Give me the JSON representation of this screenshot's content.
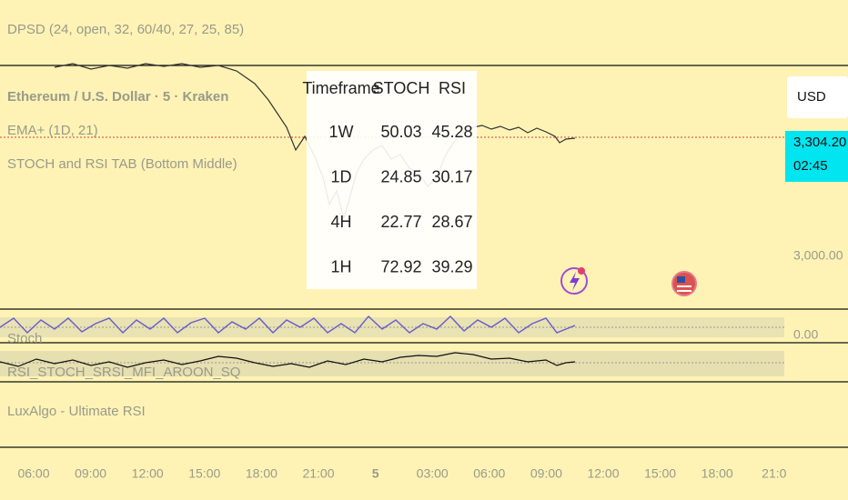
{
  "legend": {
    "indicator_top": "DPSD (24, open, 32, 60/40, 27, 25, 85)",
    "symbol": "Ethereum / U.S. Dollar · 5 · Kraken",
    "ema": "EMA+ (1D, 21)",
    "table_indicator": "STOCH and RSI TAB (Bottom Middle)"
  },
  "table": {
    "header": [
      "Timeframe",
      "STOCH",
      "RSI"
    ],
    "rows": [
      [
        "1W",
        "50.03",
        "45.28"
      ],
      [
        "1D",
        "24.85",
        "30.17"
      ],
      [
        "4H",
        "22.77",
        "28.67"
      ],
      [
        "1H",
        "72.92",
        "39.29"
      ]
    ]
  },
  "price_scale": {
    "currency": "USD",
    "last_price": "3,304.20",
    "countdown": "02:45",
    "level": "3,000.00",
    "pane_level": "0.00"
  },
  "panes": [
    "Stoch",
    "RSI_STOCH_SRSI_MFI_AROON_SQ",
    "LuxAlgo - Ultimate RSI"
  ],
  "time_axis": [
    "06:00",
    "09:00",
    "12:00",
    "15:00",
    "18:00",
    "21:00",
    "5",
    "03:00",
    "06:00",
    "09:00",
    "12:00",
    "15:00",
    "18:00",
    "21:0"
  ]
}
